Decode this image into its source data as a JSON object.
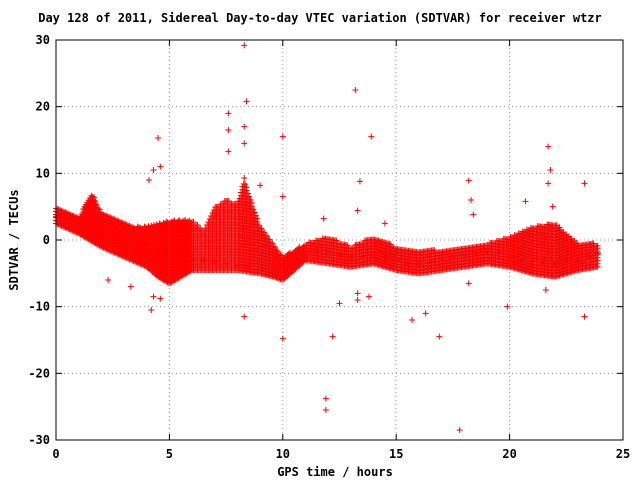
{
  "chart_data": {
    "type": "scatter",
    "title": "Day 128 of 2011, Sidereal Day-to-day VTEC variation (SDTVAR) for receiver wtzr",
    "xlabel": "GPS time / hours",
    "ylabel": "SDTVAR / TECUs",
    "xlim": [
      0,
      25
    ],
    "ylim": [
      -30,
      30
    ],
    "xticks": [
      0,
      5,
      10,
      15,
      20,
      25
    ],
    "yticks": [
      -30,
      -20,
      -10,
      0,
      10,
      20,
      30
    ],
    "grid": true,
    "marker": "+",
    "color": "#ff0000",
    "band_points": [
      [
        0.0,
        3.5
      ],
      [
        0.3,
        3.0
      ],
      [
        0.6,
        2.5
      ],
      [
        1.0,
        2.0
      ],
      [
        1.5,
        1.5
      ],
      [
        2.0,
        1.0
      ],
      [
        2.5,
        0.5
      ],
      [
        3.0,
        0.0
      ],
      [
        3.5,
        -1.0
      ],
      [
        4.0,
        -2.0
      ],
      [
        4.5,
        -3.0
      ],
      [
        5.0,
        -3.5
      ],
      [
        5.5,
        -3.5
      ],
      [
        6.0,
        -3.0
      ],
      [
        6.5,
        -3.0
      ],
      [
        7.0,
        -3.2
      ],
      [
        7.5,
        -3.5
      ],
      [
        8.0,
        -3.8
      ],
      [
        8.5,
        -4.0
      ],
      [
        9.0,
        -4.2
      ],
      [
        9.5,
        -4.5
      ],
      [
        10.0,
        -4.0
      ],
      [
        10.5,
        -3.0
      ],
      [
        11.0,
        -2.0
      ],
      [
        11.5,
        -1.5
      ],
      [
        12.0,
        -1.8
      ],
      [
        12.5,
        -2.2
      ],
      [
        13.0,
        -2.5
      ],
      [
        13.5,
        -2.5
      ],
      [
        14.0,
        -2.2
      ],
      [
        14.5,
        -2.5
      ],
      [
        15.0,
        -3.0
      ],
      [
        15.5,
        -3.5
      ],
      [
        16.0,
        -3.5
      ],
      [
        16.5,
        -3.0
      ],
      [
        17.0,
        -2.8
      ],
      [
        17.5,
        -2.5
      ],
      [
        18.0,
        -2.3
      ],
      [
        18.5,
        -2.0
      ],
      [
        19.0,
        -1.8
      ],
      [
        19.5,
        -1.8
      ],
      [
        20.0,
        -2.5
      ],
      [
        20.5,
        -3.0
      ],
      [
        21.0,
        -3.0
      ],
      [
        21.5,
        -3.5
      ],
      [
        22.0,
        -3.5
      ],
      [
        22.5,
        -3.0
      ],
      [
        23.0,
        -3.0
      ],
      [
        23.5,
        -2.5
      ],
      [
        23.9,
        -2.0
      ]
    ],
    "band_upper_points": [
      [
        0.0,
        5.0
      ],
      [
        1.0,
        3.5
      ],
      [
        1.6,
        7.0
      ],
      [
        2.0,
        4.0
      ],
      [
        3.0,
        2.5
      ],
      [
        3.5,
        2.0
      ],
      [
        4.0,
        2.0
      ],
      [
        4.5,
        2.5
      ],
      [
        5.0,
        3.0
      ],
      [
        5.5,
        3.0
      ],
      [
        6.0,
        3.0
      ],
      [
        6.5,
        1.5
      ],
      [
        7.0,
        5.0
      ],
      [
        7.5,
        6.0
      ],
      [
        8.0,
        5.5
      ],
      [
        8.3,
        9.0
      ],
      [
        9.0,
        2.0
      ],
      [
        10.0,
        -2.5
      ],
      [
        11.0,
        -0.5
      ],
      [
        12.0,
        0.5
      ],
      [
        13.0,
        -1.0
      ],
      [
        14.0,
        0.5
      ],
      [
        15.0,
        -1.0
      ],
      [
        16.0,
        -1.5
      ],
      [
        17.0,
        -1.5
      ],
      [
        18.0,
        -1.0
      ],
      [
        19.0,
        -0.5
      ],
      [
        20.0,
        0.5
      ],
      [
        21.0,
        2.0
      ],
      [
        22.0,
        2.5
      ],
      [
        23.0,
        -0.5
      ],
      [
        23.9,
        -0.5
      ]
    ],
    "band_lower_points": [
      [
        0.0,
        2.5
      ],
      [
        1.0,
        1.0
      ],
      [
        2.0,
        -1.0
      ],
      [
        3.0,
        -2.5
      ],
      [
        4.0,
        -4.0
      ],
      [
        4.5,
        -5.5
      ],
      [
        5.0,
        -6.5
      ],
      [
        5.5,
        -5.5
      ],
      [
        6.0,
        -4.5
      ],
      [
        7.0,
        -4.5
      ],
      [
        8.0,
        -4.5
      ],
      [
        9.0,
        -5.0
      ],
      [
        9.6,
        -5.5
      ],
      [
        10.0,
        -6.0
      ],
      [
        10.5,
        -4.5
      ],
      [
        11.0,
        -3.0
      ],
      [
        12.0,
        -3.5
      ],
      [
        13.0,
        -4.0
      ],
      [
        14.0,
        -3.5
      ],
      [
        15.0,
        -4.5
      ],
      [
        16.0,
        -5.0
      ],
      [
        17.0,
        -4.5
      ],
      [
        18.0,
        -4.0
      ],
      [
        19.0,
        -3.5
      ],
      [
        20.0,
        -4.0
      ],
      [
        21.0,
        -5.0
      ],
      [
        22.0,
        -5.5
      ],
      [
        23.0,
        -4.5
      ],
      [
        23.9,
        -4.0
      ]
    ],
    "outlier_points": [
      [
        8.3,
        29.2
      ],
      [
        13.2,
        22.5
      ],
      [
        7.6,
        19.0
      ],
      [
        8.4,
        20.8
      ],
      [
        7.6,
        16.5
      ],
      [
        8.3,
        17.0
      ],
      [
        8.3,
        14.5
      ],
      [
        7.6,
        13.3
      ],
      [
        4.5,
        15.3
      ],
      [
        10.0,
        15.5
      ],
      [
        13.9,
        15.5
      ],
      [
        4.6,
        11.0
      ],
      [
        4.3,
        10.5
      ],
      [
        4.1,
        9.0
      ],
      [
        8.3,
        9.3
      ],
      [
        9.0,
        8.2
      ],
      [
        13.4,
        8.8
      ],
      [
        18.2,
        8.9
      ],
      [
        21.7,
        14.0
      ],
      [
        21.8,
        10.5
      ],
      [
        21.7,
        8.5
      ],
      [
        23.3,
        8.5
      ],
      [
        20.7,
        5.8
      ],
      [
        18.3,
        6.0
      ],
      [
        18.4,
        3.8
      ],
      [
        21.9,
        5.0
      ],
      [
        10.0,
        6.5
      ],
      [
        11.8,
        3.2
      ],
      [
        13.3,
        4.4
      ],
      [
        14.5,
        2.5
      ],
      [
        4.3,
        -8.5
      ],
      [
        4.2,
        -10.5
      ],
      [
        4.6,
        -8.8
      ],
      [
        2.3,
        -6.0
      ],
      [
        3.3,
        -7.0
      ],
      [
        8.3,
        -11.5
      ],
      [
        10.0,
        -14.8
      ],
      [
        12.2,
        -14.5
      ],
      [
        13.3,
        -9.0
      ],
      [
        13.8,
        -8.5
      ],
      [
        15.7,
        -12.0
      ],
      [
        16.3,
        -11.0
      ],
      [
        16.9,
        -14.5
      ],
      [
        18.2,
        -6.5
      ],
      [
        19.9,
        -10.0
      ],
      [
        21.6,
        -7.5
      ],
      [
        23.3,
        -11.5
      ],
      [
        11.9,
        -23.8
      ],
      [
        11.9,
        -25.5
      ],
      [
        17.8,
        -28.5
      ],
      [
        12.5,
        -9.5
      ],
      [
        13.3,
        -8.0
      ]
    ]
  }
}
